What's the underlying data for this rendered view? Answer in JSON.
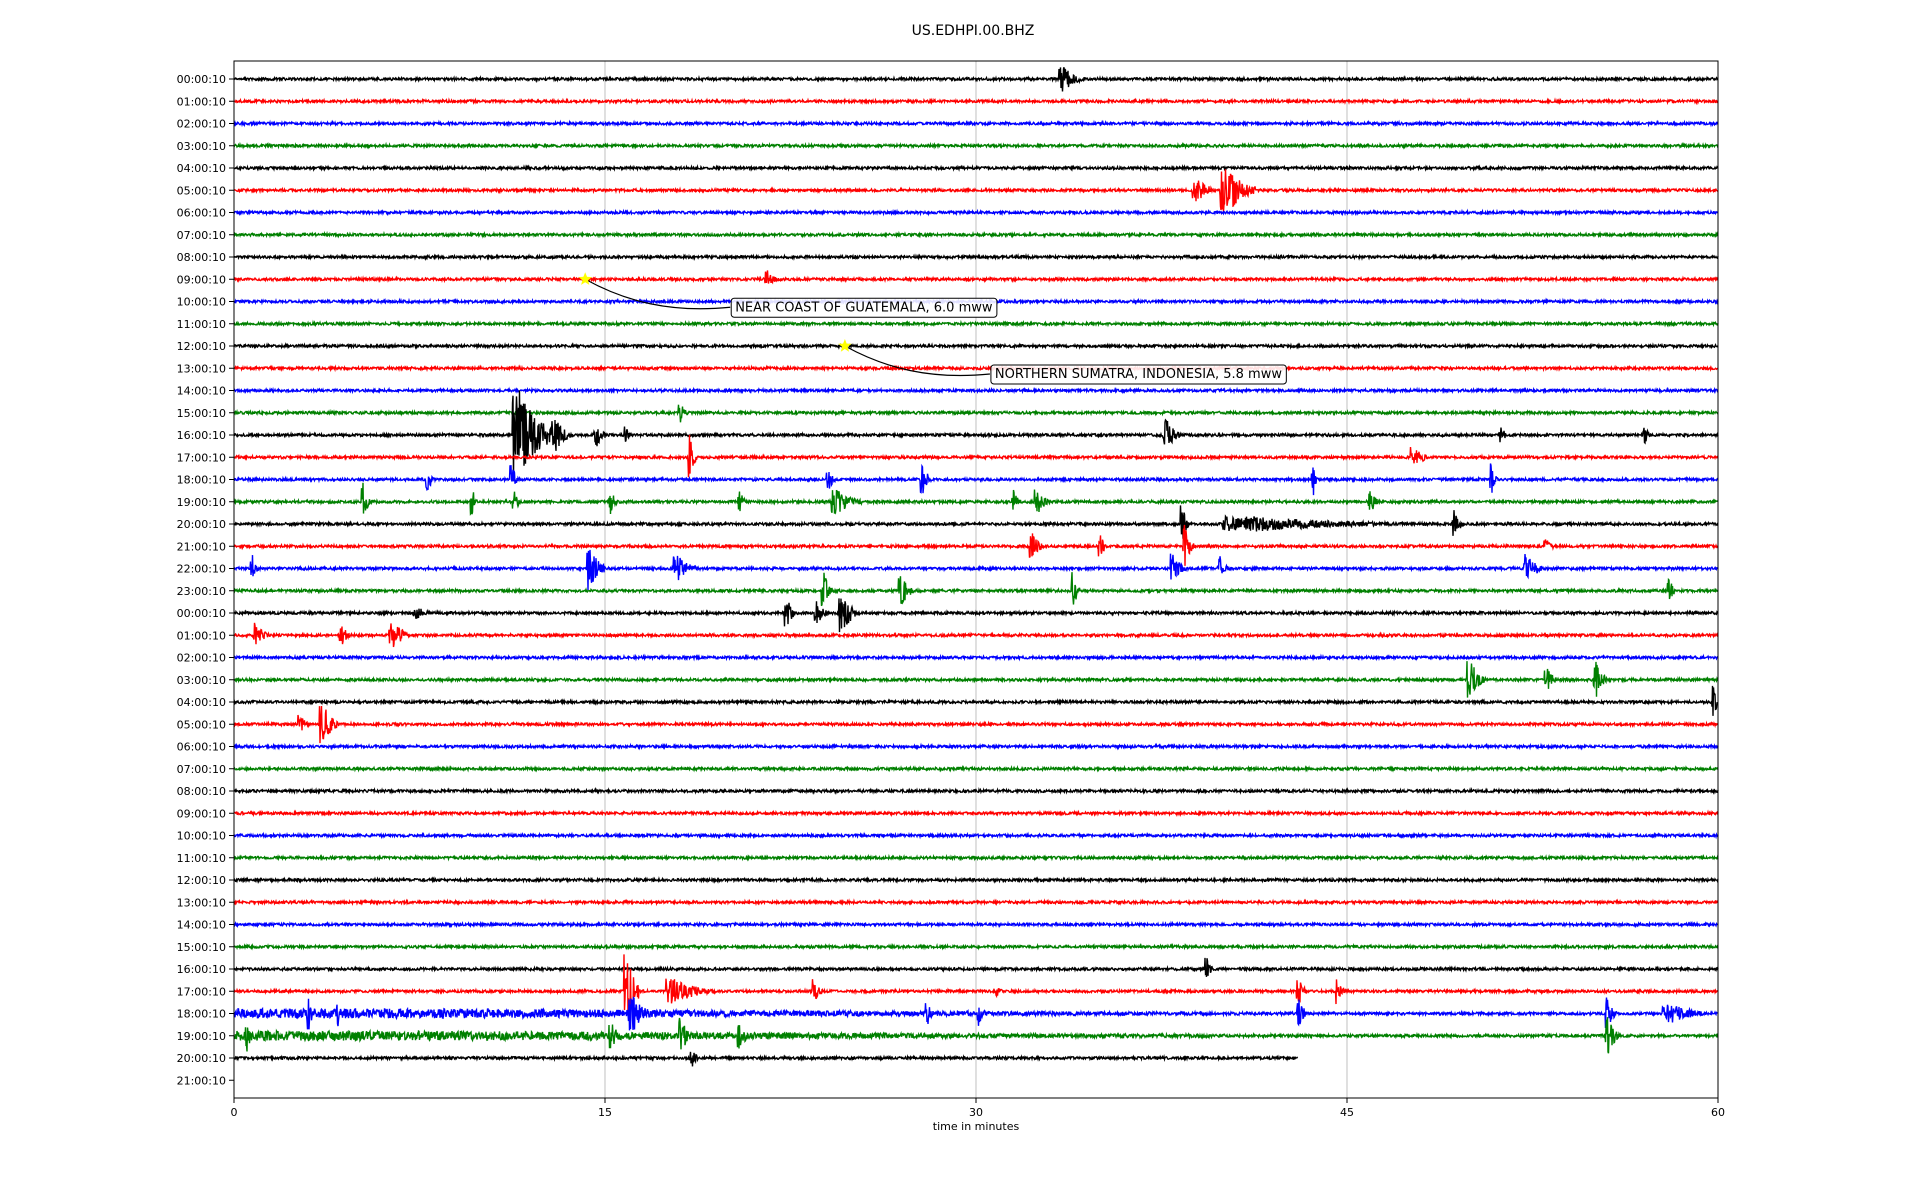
{
  "chart_data": {
    "type": "line",
    "title": "US.EDHPI.00.BHZ",
    "xlabel": "time in minutes",
    "xlim": [
      0,
      60
    ],
    "x_ticks": [
      "0",
      "15",
      "30",
      "45",
      "60"
    ],
    "x_tick_values": [
      0,
      15,
      30,
      45,
      60
    ],
    "grid": "vertical",
    "row_labels": [
      "00:00:10",
      "01:00:10",
      "02:00:10",
      "03:00:10",
      "04:00:10",
      "05:00:10",
      "06:00:10",
      "07:00:10",
      "08:00:10",
      "09:00:10",
      "10:00:10",
      "11:00:10",
      "12:00:10",
      "13:00:10",
      "14:00:10",
      "15:00:10",
      "16:00:10",
      "17:00:10",
      "18:00:10",
      "19:00:10",
      "20:00:10",
      "21:00:10",
      "22:00:10",
      "23:00:10",
      "00:00:10",
      "01:00:10",
      "02:00:10",
      "03:00:10",
      "04:00:10",
      "05:00:10",
      "06:00:10",
      "07:00:10",
      "08:00:10",
      "09:00:10",
      "10:00:10",
      "11:00:10",
      "12:00:10",
      "13:00:10",
      "14:00:10",
      "15:00:10",
      "16:00:10",
      "17:00:10",
      "18:00:10",
      "19:00:10",
      "20:00:10",
      "21:00:10"
    ],
    "trace_colors": [
      "#000000",
      "#ff0000",
      "#0000ff",
      "#008000"
    ],
    "trace_count": 45,
    "last_trace_end_minutes": 43,
    "events": [
      {
        "row": 9,
        "minute": 14.2,
        "label": "NEAR COAST OF GUATEMALA, 6.0 mww"
      },
      {
        "row": 12,
        "minute": 24.7,
        "label": "NORTHERN SUMATRA, INDONESIA, 5.8 mww"
      }
    ],
    "bursts": [
      [
        0,
        33.4,
        1.0,
        4
      ],
      [
        5,
        38.8,
        0.9,
        4
      ],
      [
        5,
        39.9,
        1.4,
        8
      ],
      [
        9,
        21.5,
        0.5,
        3
      ],
      [
        15,
        18.0,
        0.4,
        3
      ],
      [
        16,
        11.3,
        1.6,
        14
      ],
      [
        16,
        12.9,
        0.8,
        5
      ],
      [
        16,
        14.6,
        0.5,
        4
      ],
      [
        16,
        15.8,
        0.3,
        3
      ],
      [
        16,
        37.6,
        0.7,
        5
      ],
      [
        16,
        51.2,
        0.3,
        3
      ],
      [
        16,
        57.0,
        0.3,
        3
      ],
      [
        17,
        18.4,
        0.3,
        7
      ],
      [
        17,
        47.6,
        0.6,
        5
      ],
      [
        18,
        7.8,
        0.3,
        4
      ],
      [
        18,
        11.2,
        0.3,
        5
      ],
      [
        18,
        24.0,
        0.3,
        4
      ],
      [
        18,
        27.8,
        0.4,
        5
      ],
      [
        18,
        43.6,
        0.2,
        6
      ],
      [
        18,
        50.8,
        0.3,
        5
      ],
      [
        19,
        5.2,
        0.3,
        6
      ],
      [
        19,
        9.6,
        0.3,
        4
      ],
      [
        19,
        11.3,
        0.3,
        4
      ],
      [
        19,
        15.2,
        0.3,
        4
      ],
      [
        19,
        20.4,
        0.3,
        4
      ],
      [
        19,
        24.2,
        1.2,
        4
      ],
      [
        19,
        31.5,
        0.3,
        4
      ],
      [
        19,
        32.4,
        0.6,
        4
      ],
      [
        19,
        45.9,
        0.4,
        4
      ],
      [
        20,
        38.3,
        0.3,
        7
      ],
      [
        20,
        40.0,
        8.0,
        2.5
      ],
      [
        20,
        49.3,
        0.4,
        5
      ],
      [
        21,
        32.2,
        0.5,
        5
      ],
      [
        21,
        35.0,
        0.3,
        4
      ],
      [
        21,
        38.4,
        0.4,
        7
      ],
      [
        21,
        53.0,
        0.4,
        3
      ],
      [
        22,
        0.7,
        0.3,
        5
      ],
      [
        22,
        14.3,
        0.7,
        7
      ],
      [
        22,
        17.8,
        1.0,
        4
      ],
      [
        22,
        37.9,
        0.6,
        5
      ],
      [
        22,
        39.8,
        0.4,
        4
      ],
      [
        22,
        52.2,
        0.7,
        5
      ],
      [
        23,
        23.8,
        0.4,
        6
      ],
      [
        23,
        26.9,
        0.6,
        5
      ],
      [
        23,
        33.9,
        0.3,
        6
      ],
      [
        23,
        58.0,
        0.3,
        4
      ],
      [
        24,
        7.3,
        0.8,
        2
      ],
      [
        24,
        22.3,
        0.4,
        5
      ],
      [
        24,
        23.5,
        0.5,
        4
      ],
      [
        24,
        24.5,
        0.7,
        7
      ],
      [
        25,
        0.8,
        0.6,
        4
      ],
      [
        25,
        4.3,
        0.5,
        3
      ],
      [
        25,
        6.3,
        0.8,
        5
      ],
      [
        27,
        49.9,
        0.7,
        6
      ],
      [
        27,
        53.0,
        0.5,
        4
      ],
      [
        27,
        55.0,
        0.5,
        6
      ],
      [
        28,
        59.8,
        0.2,
        7
      ],
      [
        29,
        2.6,
        0.5,
        3
      ],
      [
        29,
        3.5,
        0.7,
        7
      ],
      [
        40,
        39.3,
        0.3,
        4
      ],
      [
        41,
        15.8,
        0.6,
        13
      ],
      [
        41,
        17.5,
        2.0,
        4
      ],
      [
        41,
        23.4,
        0.4,
        5
      ],
      [
        41,
        43.0,
        0.4,
        4
      ],
      [
        41,
        44.6,
        0.3,
        4
      ],
      [
        41,
        30.8,
        0.3,
        2.5
      ],
      [
        42,
        0.0,
        60.0,
        1.5
      ],
      [
        42,
        3.0,
        0.3,
        5
      ],
      [
        42,
        4.2,
        0.2,
        4
      ],
      [
        42,
        16.0,
        0.9,
        6
      ],
      [
        42,
        28.0,
        0.3,
        4
      ],
      [
        42,
        30.1,
        0.3,
        5
      ],
      [
        42,
        43.0,
        0.4,
        5
      ],
      [
        42,
        55.5,
        0.4,
        5
      ],
      [
        42,
        57.8,
        1.6,
        4
      ],
      [
        43,
        0.0,
        60.0,
        1.5
      ],
      [
        43,
        0.5,
        0.3,
        5
      ],
      [
        43,
        15.2,
        0.5,
        4
      ],
      [
        43,
        18.0,
        0.5,
        6
      ],
      [
        43,
        20.4,
        0.5,
        4
      ],
      [
        43,
        55.5,
        0.5,
        6
      ],
      [
        44,
        18.5,
        0.3,
        3
      ]
    ]
  }
}
